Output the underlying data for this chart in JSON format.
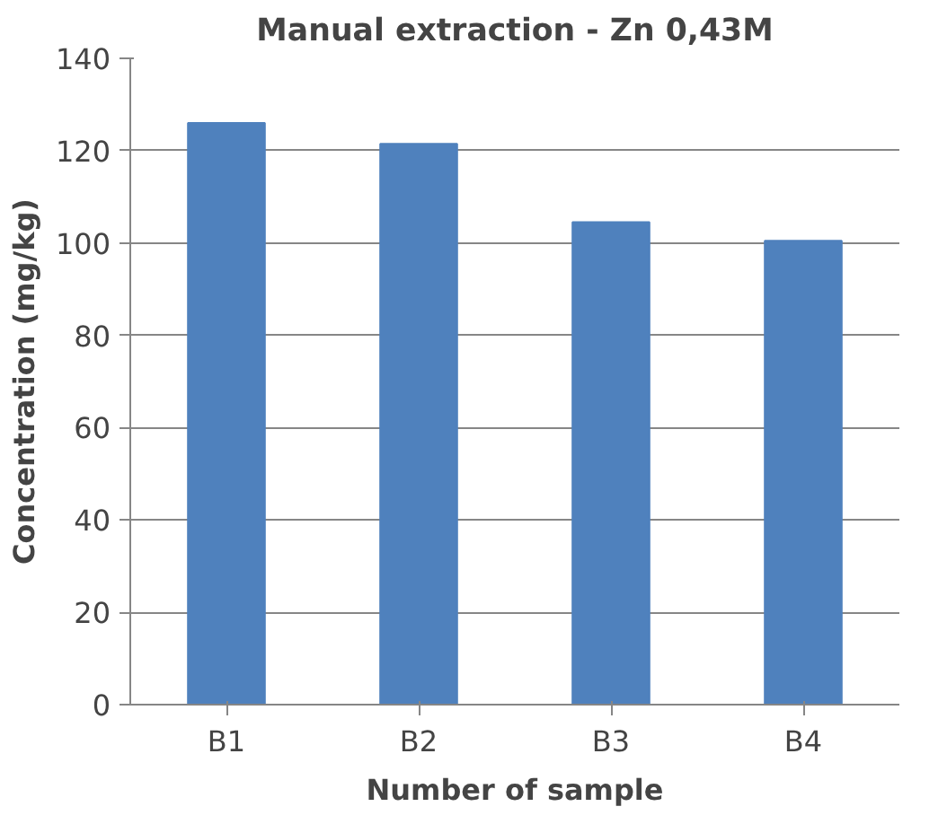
{
  "chart_data": {
    "type": "bar",
    "title": "Manual extraction - Zn 0,43M",
    "xlabel": "Number of sample",
    "ylabel": "Concentration (mg/kg)",
    "categories": [
      "B1",
      "B2",
      "B3",
      "B4"
    ],
    "values": [
      126,
      121.5,
      104.5,
      100.5
    ],
    "color": "#4f81bd",
    "ylim": [
      0,
      140
    ],
    "yticks": [
      0,
      20,
      40,
      60,
      80,
      100,
      120,
      140
    ],
    "grid": "y"
  }
}
